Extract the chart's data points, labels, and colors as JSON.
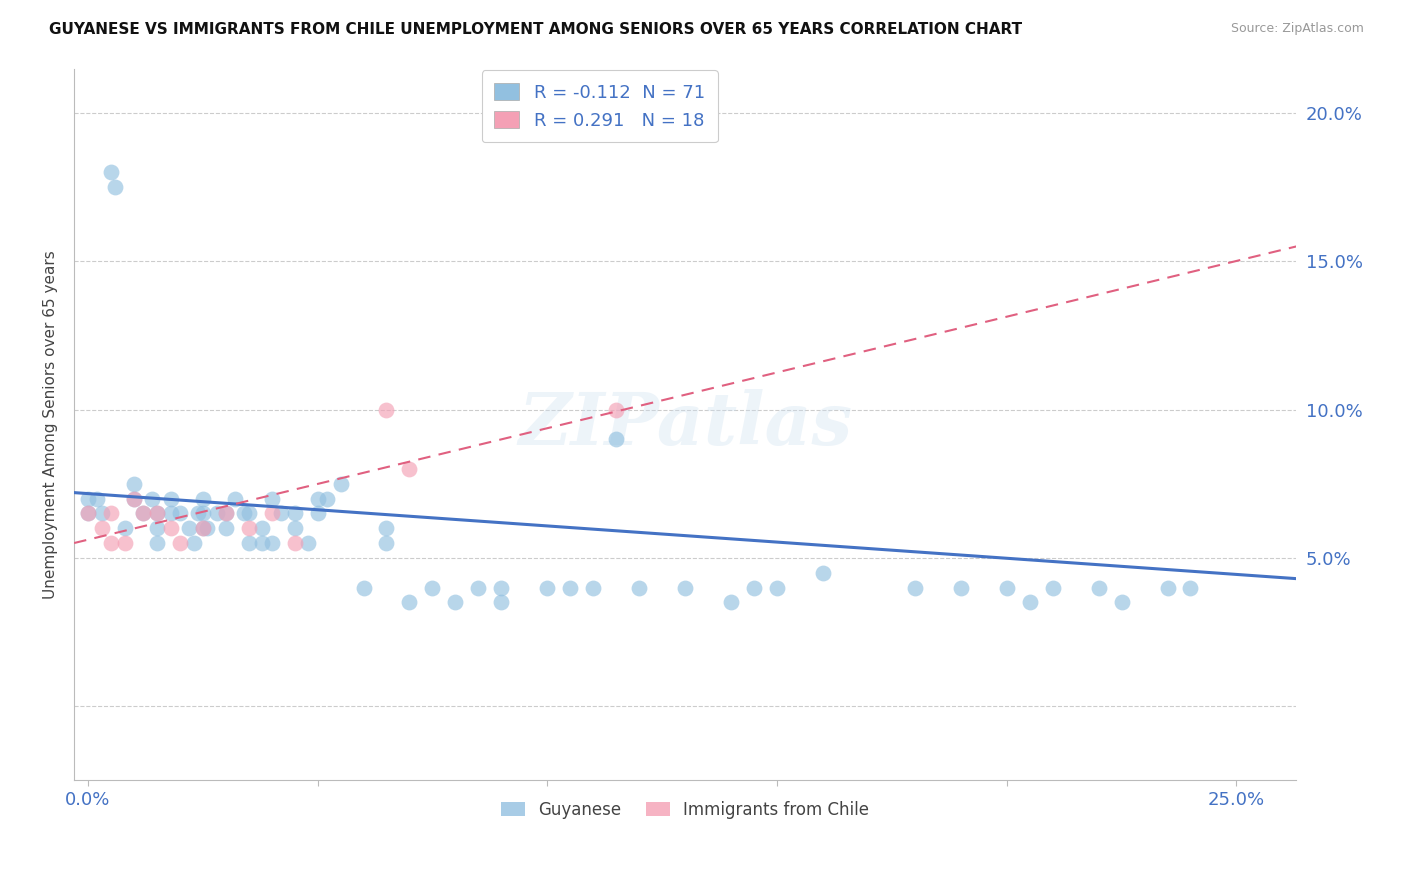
{
  "title": "GUYANESE VS IMMIGRANTS FROM CHILE UNEMPLOYMENT AMONG SENIORS OVER 65 YEARS CORRELATION CHART",
  "source": "Source: ZipAtlas.com",
  "ylabel": "Unemployment Among Seniors over 65 years",
  "xlim": [
    -0.003,
    0.263
  ],
  "ylim": [
    -0.025,
    0.215
  ],
  "x_ticks": [
    0.0,
    0.05,
    0.1,
    0.15,
    0.2,
    0.25
  ],
  "y_ticks": [
    0.0,
    0.05,
    0.1,
    0.15,
    0.2
  ],
  "legend_labels": [
    "Guyanese",
    "Immigrants from Chile"
  ],
  "r_guyanese": -0.112,
  "n_guyanese": 71,
  "r_chile": 0.291,
  "n_chile": 18,
  "blue_color": "#92c0e0",
  "pink_color": "#f4a0b5",
  "blue_line_color": "#4472c4",
  "pink_line_color": "#e06080",
  "watermark": "ZIPatlas",
  "guyanese_x": [
    0.005,
    0.006,
    0.0,
    0.0,
    0.002,
    0.003,
    0.008,
    0.01,
    0.01,
    0.012,
    0.014,
    0.015,
    0.015,
    0.015,
    0.018,
    0.018,
    0.02,
    0.022,
    0.023,
    0.024,
    0.025,
    0.025,
    0.025,
    0.026,
    0.028,
    0.03,
    0.03,
    0.032,
    0.034,
    0.035,
    0.035,
    0.038,
    0.038,
    0.04,
    0.04,
    0.042,
    0.045,
    0.045,
    0.048,
    0.05,
    0.05,
    0.052,
    0.055,
    0.06,
    0.065,
    0.065,
    0.07,
    0.075,
    0.08,
    0.085,
    0.09,
    0.09,
    0.1,
    0.105,
    0.11,
    0.115,
    0.12,
    0.13,
    0.14,
    0.145,
    0.15,
    0.16,
    0.18,
    0.19,
    0.2,
    0.205,
    0.21,
    0.22,
    0.225,
    0.235,
    0.24
  ],
  "guyanese_y": [
    0.18,
    0.175,
    0.07,
    0.065,
    0.07,
    0.065,
    0.06,
    0.075,
    0.07,
    0.065,
    0.07,
    0.06,
    0.055,
    0.065,
    0.07,
    0.065,
    0.065,
    0.06,
    0.055,
    0.065,
    0.06,
    0.07,
    0.065,
    0.06,
    0.065,
    0.065,
    0.06,
    0.07,
    0.065,
    0.055,
    0.065,
    0.055,
    0.06,
    0.055,
    0.07,
    0.065,
    0.06,
    0.065,
    0.055,
    0.07,
    0.065,
    0.07,
    0.075,
    0.04,
    0.055,
    0.06,
    0.035,
    0.04,
    0.035,
    0.04,
    0.04,
    0.035,
    0.04,
    0.04,
    0.04,
    0.09,
    0.04,
    0.04,
    0.035,
    0.04,
    0.04,
    0.045,
    0.04,
    0.04,
    0.04,
    0.035,
    0.04,
    0.04,
    0.035,
    0.04,
    0.04
  ],
  "chile_x": [
    0.0,
    0.003,
    0.005,
    0.005,
    0.008,
    0.01,
    0.012,
    0.015,
    0.018,
    0.02,
    0.025,
    0.03,
    0.035,
    0.04,
    0.045,
    0.065,
    0.07,
    0.115
  ],
  "chile_y": [
    0.065,
    0.06,
    0.065,
    0.055,
    0.055,
    0.07,
    0.065,
    0.065,
    0.06,
    0.055,
    0.06,
    0.065,
    0.06,
    0.065,
    0.055,
    0.1,
    0.08,
    0.1
  ],
  "blue_trend_start_y": 0.072,
  "blue_trend_end_y": 0.043,
  "pink_trend_start_y": 0.055,
  "pink_trend_end_y": 0.155
}
